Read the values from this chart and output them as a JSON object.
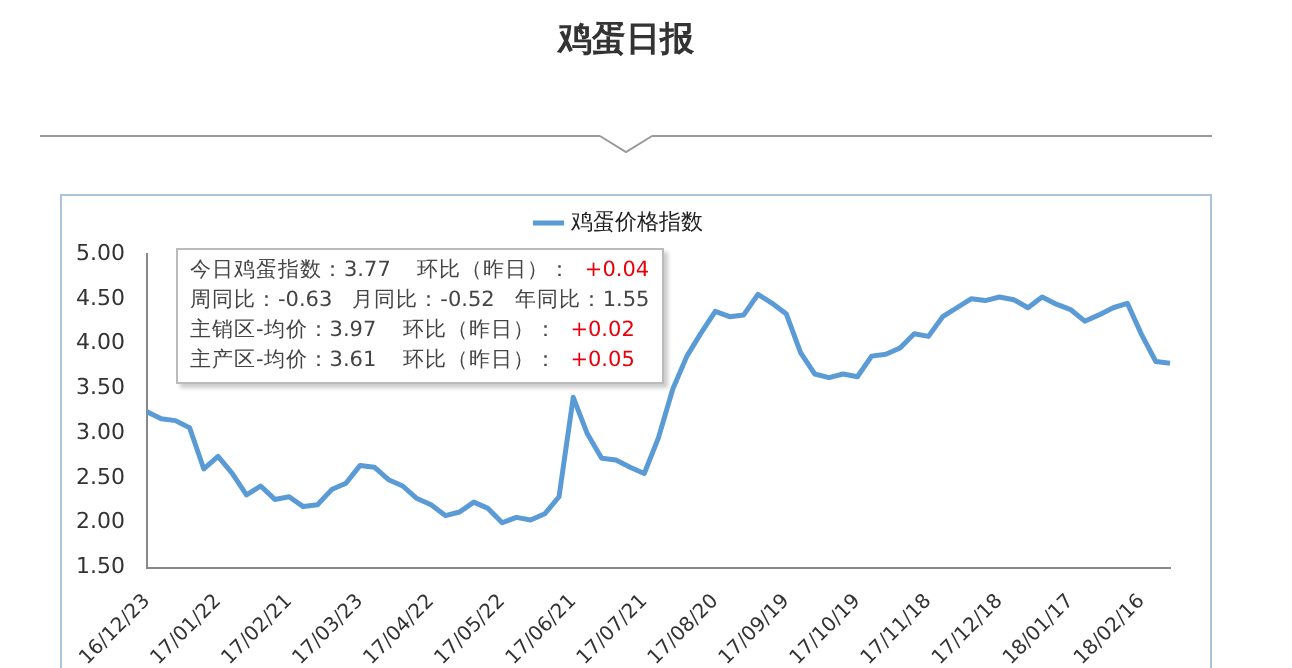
{
  "chart_data": {
    "type": "line",
    "title": "鸡蛋日报",
    "categories": [
      "16/12/23",
      null,
      null,
      null,
      null,
      "17/01/22",
      null,
      null,
      null,
      null,
      "17/02/21",
      null,
      null,
      null,
      null,
      "17/03/23",
      null,
      null,
      null,
      null,
      "17/04/22",
      null,
      null,
      null,
      null,
      "17/05/22",
      null,
      null,
      null,
      null,
      "17/06/21",
      null,
      null,
      null,
      null,
      "17/07/21",
      null,
      null,
      null,
      null,
      "17/08/20",
      null,
      null,
      null,
      null,
      "17/09/19",
      null,
      null,
      null,
      null,
      "17/10/19",
      null,
      null,
      null,
      null,
      "17/11/18",
      null,
      null,
      null,
      null,
      "17/12/18",
      null,
      null,
      null,
      null,
      "18/01/17",
      null,
      null,
      null,
      null,
      "18/02/16",
      null,
      null
    ],
    "series": [
      {
        "name": "鸡蛋价格指数",
        "color": "#5b9bd5",
        "values": [
          3.24,
          3.16,
          3.14,
          3.06,
          2.6,
          2.74,
          2.55,
          2.31,
          2.41,
          2.26,
          2.29,
          2.18,
          2.2,
          2.37,
          2.44,
          2.64,
          2.62,
          2.48,
          2.41,
          2.27,
          2.2,
          2.08,
          2.12,
          2.23,
          2.16,
          2.0,
          2.06,
          2.03,
          2.1,
          2.29,
          3.4,
          2.99,
          2.72,
          2.7,
          2.62,
          2.55,
          2.95,
          3.49,
          3.86,
          4.12,
          4.36,
          4.3,
          4.32,
          4.55,
          4.45,
          4.33,
          3.9,
          3.66,
          3.62,
          3.66,
          3.63,
          3.86,
          3.88,
          3.95,
          4.11,
          4.08,
          4.3,
          4.4,
          4.5,
          4.48,
          4.52,
          4.49,
          4.4,
          4.52,
          4.44,
          4.38,
          4.25,
          4.32,
          4.4,
          4.45,
          4.1,
          3.8,
          3.78
        ]
      }
    ],
    "ylim": [
      1.5,
      5
    ],
    "yticks": [
      {
        "value": 1.5,
        "label": "1.50"
      },
      {
        "value": 2,
        "label": "2.00"
      },
      {
        "value": 2.5,
        "label": "2.50"
      },
      {
        "value": 3,
        "label": "3.00"
      },
      {
        "value": 3.5,
        "label": "3.50"
      },
      {
        "value": 4,
        "label": "4.00"
      },
      {
        "value": 4.5,
        "label": "4.50"
      },
      {
        "value": 5,
        "label": "5.00"
      }
    ],
    "grid": false,
    "legend": "top",
    "marker": "none",
    "line_style": "solid",
    "annotations": [
      "今日鸡蛋指数：3.77    环比（昨日）：  +0.04",
      "周同比：-0.63   月同比：-0.52   年同比：1.55",
      "主销区-均价：3.97    环比（昨日）：  +0.02",
      "主产区-均价：3.61    环比（昨日）：  +0.05"
    ]
  }
}
